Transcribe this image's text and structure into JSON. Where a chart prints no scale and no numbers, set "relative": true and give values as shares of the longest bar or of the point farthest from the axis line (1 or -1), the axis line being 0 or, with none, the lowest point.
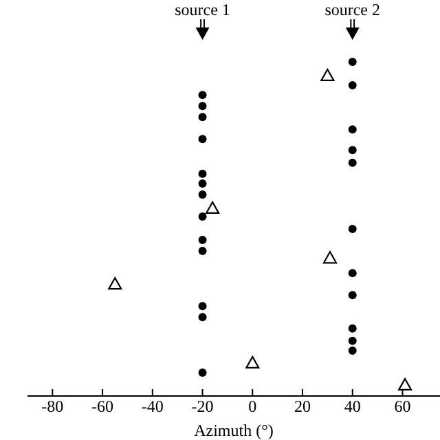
{
  "chart_data": {
    "type": "scatter",
    "xlabel": "Azimuth (°)",
    "relative": true,
    "xlim": [
      -90,
      75
    ],
    "xticks": [
      -80,
      -60,
      -40,
      -20,
      0,
      20,
      40,
      60
    ],
    "grid": false,
    "annotations": [
      "source 1",
      "source 2"
    ],
    "series": [
      {
        "color": "#000000",
        "marker": "circle",
        "x": [
          -20,
          -20,
          -20,
          -20,
          -20,
          -20,
          -20,
          -20,
          -20,
          -20,
          -20,
          -20,
          -20,
          40,
          40,
          40,
          40,
          40,
          40,
          40,
          40,
          40,
          40,
          40
        ],
        "values": [
          0.901,
          0.868,
          0.835,
          0.769,
          0.665,
          0.636,
          0.603,
          0.537,
          0.467,
          0.434,
          0.269,
          0.236,
          0.07,
          1,
          0.93,
          0.798,
          0.736,
          0.698,
          0.5,
          0.368,
          0.302,
          0.202,
          0.165,
          0.136
        ]
      },
      {
        "color": "#000000",
        "marker": "triangle",
        "x": [
          -55,
          -16,
          0,
          31,
          30,
          61
        ],
        "values": [
          0.335,
          0.562,
          0.099,
          0.413,
          0.959,
          0.033
        ]
      }
    ]
  }
}
